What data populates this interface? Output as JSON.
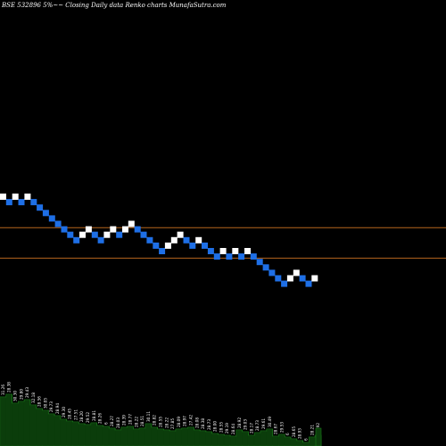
{
  "chart_data": {
    "type": "renko",
    "title": "BSE 532896  5%~~  Closing Daily data  Renko  charts MunafaSutra.com",
    "colors": {
      "background": "#000000",
      "up_brick": "#ffffff",
      "down_brick": "#1e6fe6",
      "reference_line": "#b5651d",
      "volume_fill": "#0b3d0b",
      "volume_line": "#1a7a1a",
      "volume_label": "#ffffff"
    },
    "bricks": [
      {
        "level": 20,
        "dir": "up"
      },
      {
        "level": 19,
        "dir": "down"
      },
      {
        "level": 20,
        "dir": "up"
      },
      {
        "level": 19,
        "dir": "down"
      },
      {
        "level": 20,
        "dir": "up"
      },
      {
        "level": 19,
        "dir": "down"
      },
      {
        "level": 18,
        "dir": "down"
      },
      {
        "level": 17,
        "dir": "down"
      },
      {
        "level": 16,
        "dir": "down"
      },
      {
        "level": 15,
        "dir": "down"
      },
      {
        "level": 14,
        "dir": "down"
      },
      {
        "level": 13,
        "dir": "down"
      },
      {
        "level": 12,
        "dir": "down"
      },
      {
        "level": 13,
        "dir": "up"
      },
      {
        "level": 14,
        "dir": "up"
      },
      {
        "level": 13,
        "dir": "down"
      },
      {
        "level": 12,
        "dir": "down"
      },
      {
        "level": 13,
        "dir": "up"
      },
      {
        "level": 14,
        "dir": "up"
      },
      {
        "level": 13,
        "dir": "down"
      },
      {
        "level": 14,
        "dir": "up"
      },
      {
        "level": 15,
        "dir": "up"
      },
      {
        "level": 14,
        "dir": "down"
      },
      {
        "level": 13,
        "dir": "down"
      },
      {
        "level": 12,
        "dir": "down"
      },
      {
        "level": 11,
        "dir": "down"
      },
      {
        "level": 10,
        "dir": "down"
      },
      {
        "level": 11,
        "dir": "up"
      },
      {
        "level": 12,
        "dir": "up"
      },
      {
        "level": 13,
        "dir": "up"
      },
      {
        "level": 12,
        "dir": "down"
      },
      {
        "level": 11,
        "dir": "down"
      },
      {
        "level": 12,
        "dir": "up"
      },
      {
        "level": 11,
        "dir": "down"
      },
      {
        "level": 10,
        "dir": "down"
      },
      {
        "level": 9,
        "dir": "down"
      },
      {
        "level": 10,
        "dir": "up"
      },
      {
        "level": 9,
        "dir": "down"
      },
      {
        "level": 10,
        "dir": "up"
      },
      {
        "level": 9,
        "dir": "down"
      },
      {
        "level": 10,
        "dir": "up"
      },
      {
        "level": 9,
        "dir": "down"
      },
      {
        "level": 8,
        "dir": "down"
      },
      {
        "level": 7,
        "dir": "down"
      },
      {
        "level": 6,
        "dir": "down"
      },
      {
        "level": 5,
        "dir": "down"
      },
      {
        "level": 4,
        "dir": "down"
      },
      {
        "level": 5,
        "dir": "up"
      },
      {
        "level": 6,
        "dir": "up"
      },
      {
        "level": 5,
        "dir": "down"
      },
      {
        "level": 4,
        "dir": "down"
      },
      {
        "level": 5,
        "dir": "up"
      }
    ],
    "reference_lines": [
      {
        "level": 14.3
      },
      {
        "level": 8.7
      }
    ],
    "volume_bars": [
      {
        "value": 0.55,
        "label": "31.26"
      },
      {
        "value": 0.58,
        "label": "28.38"
      },
      {
        "value": 0.48,
        "label": "30.30"
      },
      {
        "value": 0.5,
        "label": "29.80"
      },
      {
        "value": 0.52,
        "label": "29.43"
      },
      {
        "value": 0.46,
        "label": "32.18"
      },
      {
        "value": 0.42,
        "label": "28.56"
      },
      {
        "value": 0.4,
        "label": "30.05"
      },
      {
        "value": 0.36,
        "label": "29.73"
      },
      {
        "value": 0.34,
        "label": "28.94"
      },
      {
        "value": 0.3,
        "label": "29.30"
      },
      {
        "value": 0.28,
        "label": "28.45"
      },
      {
        "value": 0.27,
        "label": "27.51"
      },
      {
        "value": 0.25,
        "label": "28.20"
      },
      {
        "value": 0.24,
        "label": "29.52"
      },
      {
        "value": 0.26,
        "label": "28.81"
      },
      {
        "value": 0.23,
        "label": "28.26"
      },
      {
        "value": 0.22,
        "label": "6"
      },
      {
        "value": 0.2,
        "label": "28.27"
      },
      {
        "value": 0.18,
        "label": "28.03"
      },
      {
        "value": 0.21,
        "label": "28.39"
      },
      {
        "value": 0.22,
        "label": "28.77"
      },
      {
        "value": 0.19,
        "label": "28.22"
      },
      {
        "value": 0.2,
        "label": "28.51"
      },
      {
        "value": 0.25,
        "label": "30.11"
      },
      {
        "value": 0.21,
        "label": "28.82"
      },
      {
        "value": 0.19,
        "label": "28.55"
      },
      {
        "value": 0.18,
        "label": "28.22"
      },
      {
        "value": 0.17,
        "label": "27.85"
      },
      {
        "value": 0.19,
        "label": "28.09"
      },
      {
        "value": 0.2,
        "label": "28.97"
      },
      {
        "value": 0.21,
        "label": "27.42"
      },
      {
        "value": 0.18,
        "label": "28.08"
      },
      {
        "value": 0.17,
        "label": "28.38"
      },
      {
        "value": 0.16,
        "label": "28.73"
      },
      {
        "value": 0.14,
        "label": "28.00"
      },
      {
        "value": 0.13,
        "label": "28.55"
      },
      {
        "value": 0.12,
        "label": "29.19"
      },
      {
        "value": 0.11,
        "label": "28.64"
      },
      {
        "value": 0.18,
        "label": "28.92"
      },
      {
        "value": 0.16,
        "label": "29.03"
      },
      {
        "value": 0.12,
        "label": "28.17"
      },
      {
        "value": 0.15,
        "label": "28.73"
      },
      {
        "value": 0.17,
        "label": "29.61"
      },
      {
        "value": 0.19,
        "label": "30.49"
      },
      {
        "value": 0.11,
        "label": "28.67"
      },
      {
        "value": 0.13,
        "label": "29.53"
      },
      {
        "value": 0.1,
        "label": "6"
      },
      {
        "value": 0.08,
        "label": "28.65"
      },
      {
        "value": 0.06,
        "label": "28.93"
      },
      {
        "value": 0.04,
        "label": "6"
      },
      {
        "value": 0.1,
        "label": "28.21"
      },
      {
        "value": 0.12,
        "label": "29.92"
      }
    ]
  }
}
